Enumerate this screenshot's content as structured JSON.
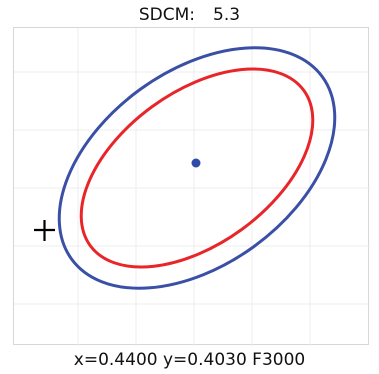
{
  "header": {
    "label": "SDCM:",
    "value": "5.3"
  },
  "readout": {
    "text": "x=0.4400 y=0.4030 F3000"
  },
  "colors": {
    "outer_ellipse": "#3a4fa6",
    "inner_ellipse": "#e8262a",
    "center_dot": "#2f4aa8",
    "crosshair": "#000000",
    "grid": "#eeeeee",
    "frame": "#d7d7d7"
  },
  "icons": {
    "marker": "crosshair-icon"
  }
}
